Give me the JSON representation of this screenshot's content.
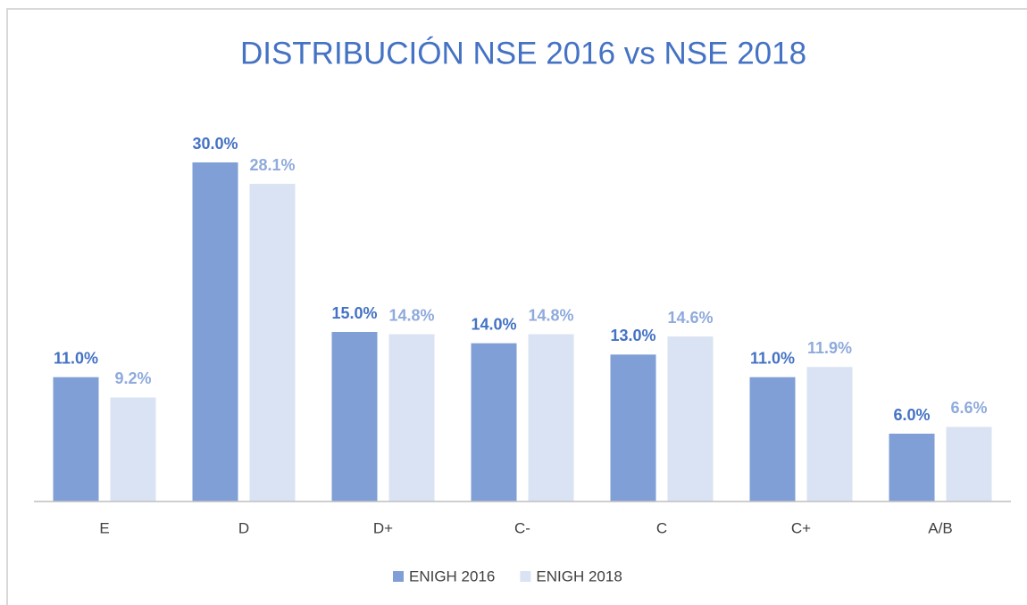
{
  "chart_data": {
    "type": "bar",
    "title": "DISTRIBUCIÓN NSE 2016 vs NSE 2018",
    "categories": [
      "E",
      "D",
      "D+",
      "C-",
      "C",
      "C+",
      "A/B"
    ],
    "series": [
      {
        "name": "ENIGH 2016",
        "color": "#7f9fd6",
        "label_color": "#4472c4",
        "values": [
          11.0,
          30.0,
          15.0,
          14.0,
          13.0,
          11.0,
          6.0
        ],
        "value_labels": [
          "11.0%",
          "30.0%",
          "15.0%",
          "14.0%",
          "13.0%",
          "11.0%",
          "6.0%"
        ]
      },
      {
        "name": "ENIGH 2018",
        "color": "#dae3f3",
        "label_color": "#8faadc",
        "values": [
          9.2,
          28.1,
          14.8,
          14.8,
          14.6,
          11.9,
          6.6
        ],
        "value_labels": [
          "9.2%",
          "28.1%",
          "14.8%",
          "14.8%",
          "14.6%",
          "11.9%",
          "6.6%"
        ]
      }
    ],
    "ylim": [
      0,
      30
    ],
    "legend": "bottom"
  }
}
